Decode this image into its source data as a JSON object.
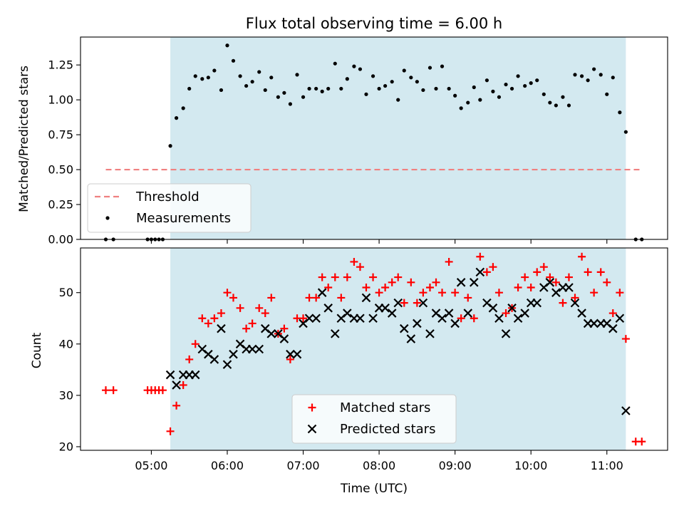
{
  "chart_data": {
    "title": "Flux total observing time = 6.00 h",
    "xlabel": "Time (UTC)",
    "x_ticks": [
      "05:00",
      "06:00",
      "07:00",
      "08:00",
      "09:00",
      "10:00",
      "11:00"
    ],
    "xlim_hours": [
      4.067,
      11.8
    ],
    "shaded_interval_hours": [
      5.25,
      11.25
    ],
    "colors": {
      "shade": "#d3e9f0",
      "threshold": "#f08080",
      "measurements": "#000000",
      "matched": "#ff0000",
      "predicted": "#000000"
    },
    "panels": [
      {
        "type": "scatter",
        "ylabel": "Matched/Predicted stars",
        "ylim": [
          0,
          1.45
        ],
        "y_ticks": [
          "0.00",
          "0.25",
          "0.50",
          "0.75",
          "1.00",
          "1.25"
        ],
        "legend": {
          "position": "lower-left",
          "entries": [
            "Threshold",
            "Measurements"
          ]
        },
        "threshold": {
          "name": "Threshold",
          "value": 0.5,
          "x_range": [
            4.4,
            11.45
          ]
        },
        "series": [
          {
            "name": "Measurements",
            "marker": "dot",
            "x": [
              4.4,
              4.5,
              4.95,
              5.0,
              5.05,
              5.1,
              5.15,
              5.25,
              5.33,
              5.42,
              5.5,
              5.58,
              5.67,
              5.75,
              5.83,
              5.92,
              6.0,
              6.08,
              6.17,
              6.25,
              6.33,
              6.42,
              6.5,
              6.58,
              6.67,
              6.75,
              6.83,
              6.92,
              7.0,
              7.08,
              7.17,
              7.25,
              7.33,
              7.42,
              7.5,
              7.58,
              7.67,
              7.75,
              7.83,
              7.92,
              8.0,
              8.08,
              8.17,
              8.25,
              8.33,
              8.42,
              8.5,
              8.58,
              8.67,
              8.75,
              8.83,
              8.92,
              9.0,
              9.08,
              9.17,
              9.25,
              9.33,
              9.42,
              9.5,
              9.58,
              9.67,
              9.75,
              9.83,
              9.92,
              10.0,
              10.08,
              10.17,
              10.25,
              10.33,
              10.42,
              10.5,
              10.58,
              10.67,
              10.75,
              10.83,
              10.92,
              11.0,
              11.08,
              11.17,
              11.25,
              11.38,
              11.46
            ],
            "y": [
              0,
              0,
              0,
              0,
              0,
              0,
              0,
              0.67,
              0.87,
              0.94,
              1.08,
              1.17,
              1.15,
              1.16,
              1.21,
              1.07,
              1.39,
              1.28,
              1.17,
              1.1,
              1.13,
              1.2,
              1.07,
              1.16,
              1.02,
              1.05,
              0.97,
              1.18,
              1.02,
              1.08,
              1.08,
              1.06,
              1.08,
              1.26,
              1.08,
              1.15,
              1.24,
              1.22,
              1.04,
              1.17,
              1.08,
              1.1,
              1.13,
              1.0,
              1.21,
              1.16,
              1.13,
              1.07,
              1.23,
              1.08,
              1.24,
              1.08,
              1.03,
              0.94,
              0.98,
              1.09,
              1.0,
              1.14,
              1.06,
              1.02,
              1.11,
              1.08,
              1.17,
              1.1,
              1.12,
              1.14,
              1.04,
              0.98,
              0.96,
              1.02,
              0.96,
              1.18,
              1.17,
              1.14,
              1.22,
              1.18,
              1.04,
              1.16,
              0.91,
              0.77,
              0,
              0
            ]
          }
        ]
      },
      {
        "type": "scatter",
        "ylabel": "Count",
        "ylim": [
          19.3,
          58.7
        ],
        "y_ticks": [
          "20",
          "30",
          "40",
          "50"
        ],
        "legend": {
          "position": "lower-center",
          "entries": [
            "Matched stars",
            "Predicted stars"
          ]
        },
        "series": [
          {
            "name": "Matched stars",
            "marker": "plus",
            "x": [
              4.4,
              4.5,
              4.95,
              5.0,
              5.05,
              5.1,
              5.15,
              5.25,
              5.33,
              5.42,
              5.5,
              5.58,
              5.67,
              5.75,
              5.83,
              5.92,
              6.0,
              6.08,
              6.17,
              6.25,
              6.33,
              6.42,
              6.5,
              6.58,
              6.67,
              6.75,
              6.83,
              6.92,
              7.0,
              7.08,
              7.17,
              7.25,
              7.33,
              7.42,
              7.5,
              7.58,
              7.67,
              7.75,
              7.83,
              7.92,
              8.0,
              8.08,
              8.17,
              8.25,
              8.33,
              8.42,
              8.5,
              8.58,
              8.67,
              8.75,
              8.83,
              8.92,
              9.0,
              9.08,
              9.17,
              9.25,
              9.33,
              9.42,
              9.5,
              9.58,
              9.67,
              9.75,
              9.83,
              9.92,
              10.0,
              10.08,
              10.17,
              10.25,
              10.33,
              10.42,
              10.5,
              10.58,
              10.67,
              10.75,
              10.83,
              10.92,
              11.0,
              11.08,
              11.17,
              11.25,
              11.38,
              11.46
            ],
            "y": [
              31,
              31,
              31,
              31,
              31,
              31,
              31,
              23,
              28,
              32,
              37,
              40,
              45,
              44,
              45,
              46,
              50,
              49,
              47,
              43,
              44,
              47,
              46,
              49,
              42,
              43,
              37,
              45,
              45,
              49,
              49,
              53,
              51,
              53,
              49,
              53,
              56,
              55,
              51,
              53,
              50,
              51,
              52,
              53,
              48,
              52,
              48,
              50,
              51,
              52,
              50,
              56,
              50,
              45,
              49,
              45,
              57,
              54,
              55,
              50,
              46,
              47,
              51,
              53,
              51,
              54,
              55,
              53,
              52,
              48,
              53,
              49,
              57,
              54,
              50,
              54,
              52,
              46,
              50,
              41,
              21,
              21
            ]
          },
          {
            "name": "Predicted stars",
            "marker": "x",
            "x": [
              5.25,
              5.33,
              5.42,
              5.5,
              5.58,
              5.67,
              5.75,
              5.83,
              5.92,
              6.0,
              6.08,
              6.17,
              6.25,
              6.33,
              6.42,
              6.5,
              6.58,
              6.67,
              6.75,
              6.83,
              6.92,
              7.0,
              7.08,
              7.17,
              7.25,
              7.33,
              7.42,
              7.5,
              7.58,
              7.67,
              7.75,
              7.83,
              7.92,
              8.0,
              8.08,
              8.17,
              8.25,
              8.33,
              8.42,
              8.5,
              8.58,
              8.67,
              8.75,
              8.83,
              8.92,
              9.0,
              9.08,
              9.17,
              9.25,
              9.33,
              9.42,
              9.5,
              9.58,
              9.67,
              9.75,
              9.83,
              9.92,
              10.0,
              10.08,
              10.17,
              10.25,
              10.33,
              10.42,
              10.5,
              10.58,
              10.67,
              10.75,
              10.83,
              10.92,
              11.0,
              11.08,
              11.17,
              11.25
            ],
            "y": [
              34,
              32,
              34,
              34,
              34,
              39,
              38,
              37,
              43,
              36,
              38,
              40,
              39,
              39,
              39,
              43,
              42,
              42,
              41,
              38,
              38,
              44,
              45,
              45,
              50,
              47,
              42,
              45,
              46,
              45,
              45,
              49,
              45,
              47,
              47,
              46,
              48,
              43,
              41,
              44,
              48,
              42,
              46,
              45,
              46,
              44,
              52,
              46,
              52,
              54,
              48,
              47,
              45,
              42,
              47,
              45,
              46,
              48,
              48,
              51,
              52,
              50,
              51,
              51,
              48,
              46,
              44,
              44,
              44,
              44,
              43,
              45,
              27
            ]
          }
        ]
      }
    ]
  }
}
